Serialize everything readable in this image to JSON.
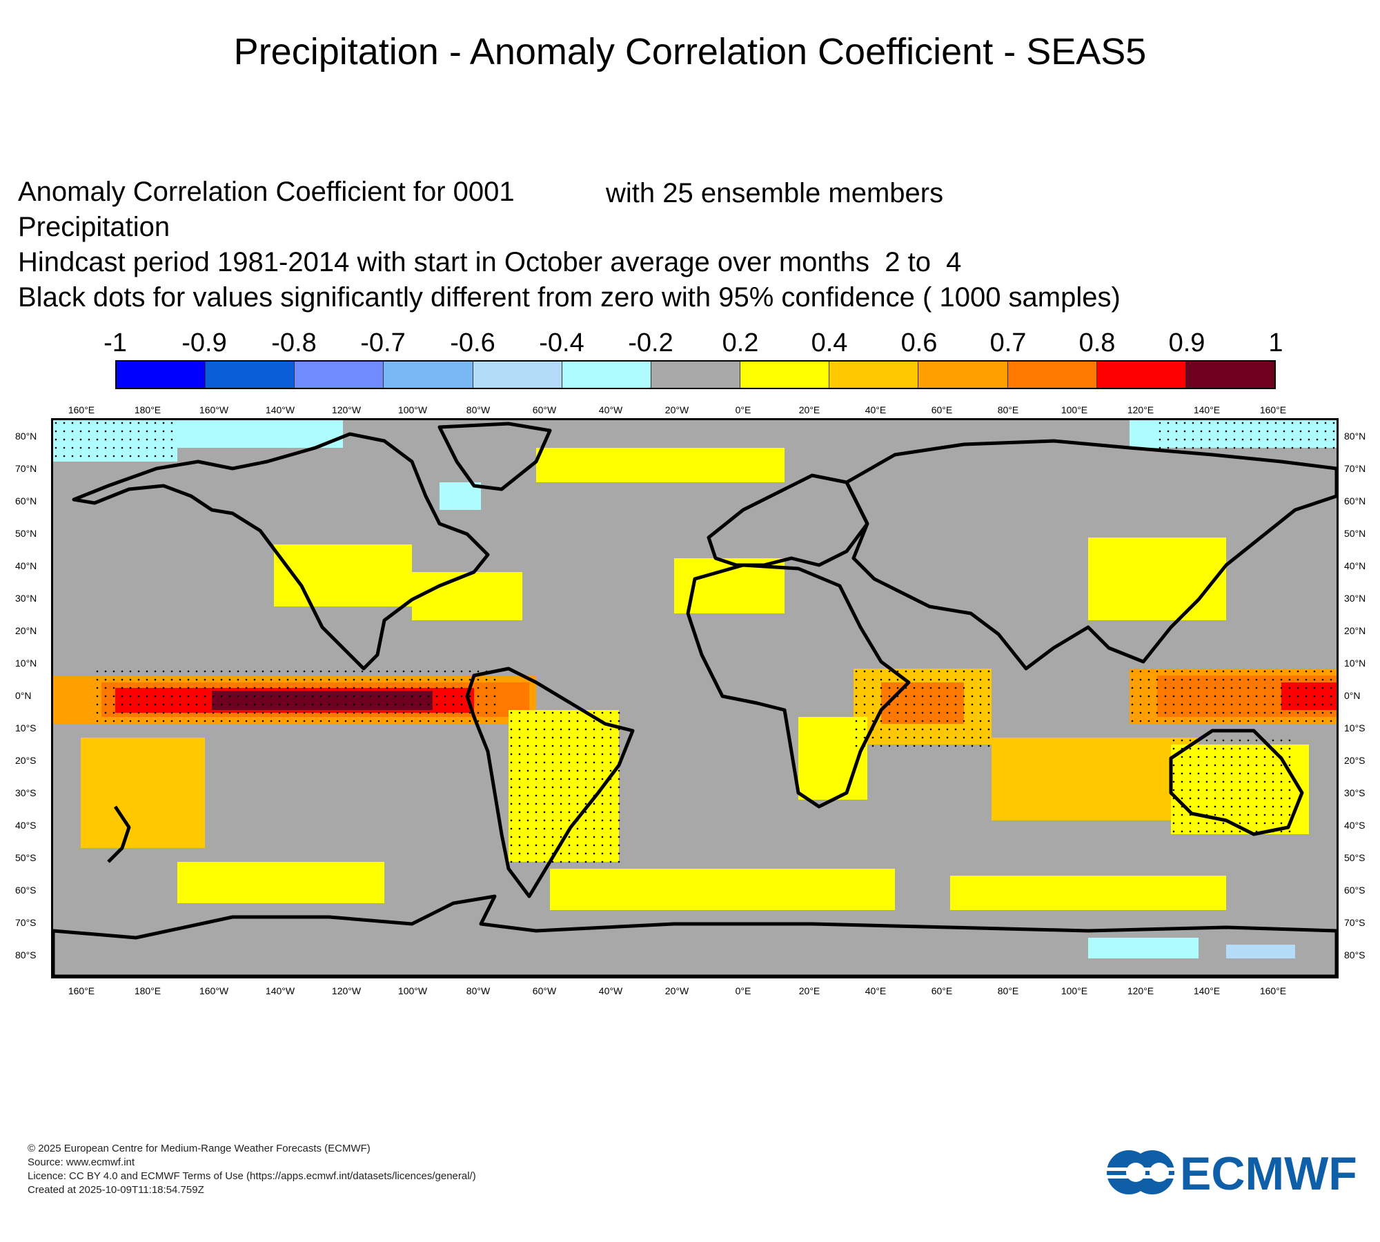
{
  "title": "Precipitation - Anomaly Correlation Coefficient - SEAS5",
  "header": {
    "line1_left": "Anomaly Correlation Coefficient for 0001",
    "line1_right": "with 25 ensemble members",
    "line2": "Precipitation",
    "line3": "Hindcast period 1981-2014 with start in October average over months  2 to  4",
    "line4": "Black dots for values significantly different from zero with 95% confidence ( 1000 samples)"
  },
  "colorbar": {
    "labels": [
      "-1",
      "-0.9",
      "-0.8",
      "-0.7",
      "-0.6",
      "-0.4",
      "-0.2",
      "0.2",
      "0.4",
      "0.6",
      "0.7",
      "0.8",
      "0.9",
      "1"
    ],
    "colors": [
      "#0000ff",
      "#0a5fd9",
      "#6f8bff",
      "#79b8f5",
      "#b4dcf8",
      "#aefcfe",
      "#a8a8a8",
      "#ffff00",
      "#ffc800",
      "#ffa000",
      "#ff7800",
      "#ff0000",
      "#700020"
    ]
  },
  "map": {
    "lon_labels": [
      "160°E",
      "180°E",
      "160°W",
      "140°W",
      "120°W",
      "100°W",
      "80°W",
      "60°W",
      "40°W",
      "20°W",
      "0°E",
      "20°E",
      "40°E",
      "60°E",
      "80°E",
      "100°E",
      "120°E",
      "140°E",
      "160°E"
    ],
    "lat_labels": [
      "80°N",
      "70°N",
      "60°N",
      "50°N",
      "40°N",
      "30°N",
      "20°N",
      "10°N",
      "0°N",
      "10°S",
      "20°S",
      "30°S",
      "40°S",
      "50°S",
      "60°S",
      "70°S",
      "80°S"
    ],
    "ocean_color": "#a8a8a8",
    "land_outline_color": "#000000"
  },
  "footer": {
    "copyright": "© 2025 European Centre for Medium-Range Weather Forecasts (ECMWF)",
    "source": "Source: www.ecmwf.int",
    "licence": "Licence: CC BY 4.0 and ECMWF Terms of Use (https://apps.ecmwf.int/datasets/licences/general/)",
    "created": "Created at 2025-10-09T11:18:54.759Z"
  },
  "logo": {
    "text": "ECMWF",
    "color": "#0f5fa8"
  }
}
